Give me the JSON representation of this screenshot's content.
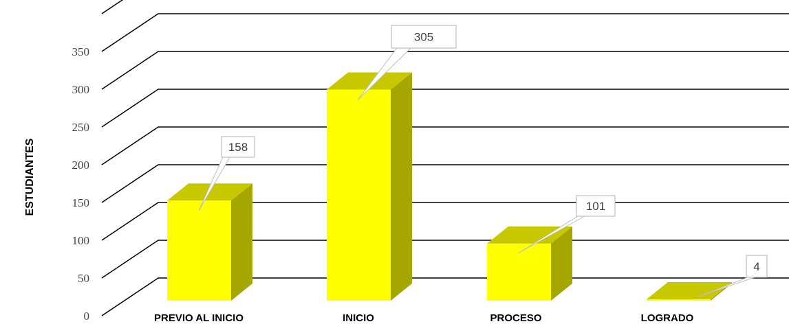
{
  "chart_data": {
    "type": "bar",
    "categories": [
      "PREVIO AL INICIO",
      "INICIO",
      "PROCESO",
      "LOGRADO"
    ],
    "values": [
      158,
      305,
      101,
      4
    ],
    "data_labels": [
      "158",
      "305",
      "101",
      "4"
    ],
    "ylabel": "ESTUDIANTES",
    "ylim": [
      0,
      350
    ],
    "yticks": [
      0,
      50,
      100,
      150,
      200,
      250,
      300,
      350
    ],
    "ytick_labels": [
      "0",
      "50",
      "100",
      "150",
      "200",
      "250",
      "300",
      "350"
    ],
    "grid": true,
    "style": "3d-column",
    "colors": {
      "front": "#ffff00",
      "top": "#c8c800",
      "side": "#a6a600"
    }
  }
}
